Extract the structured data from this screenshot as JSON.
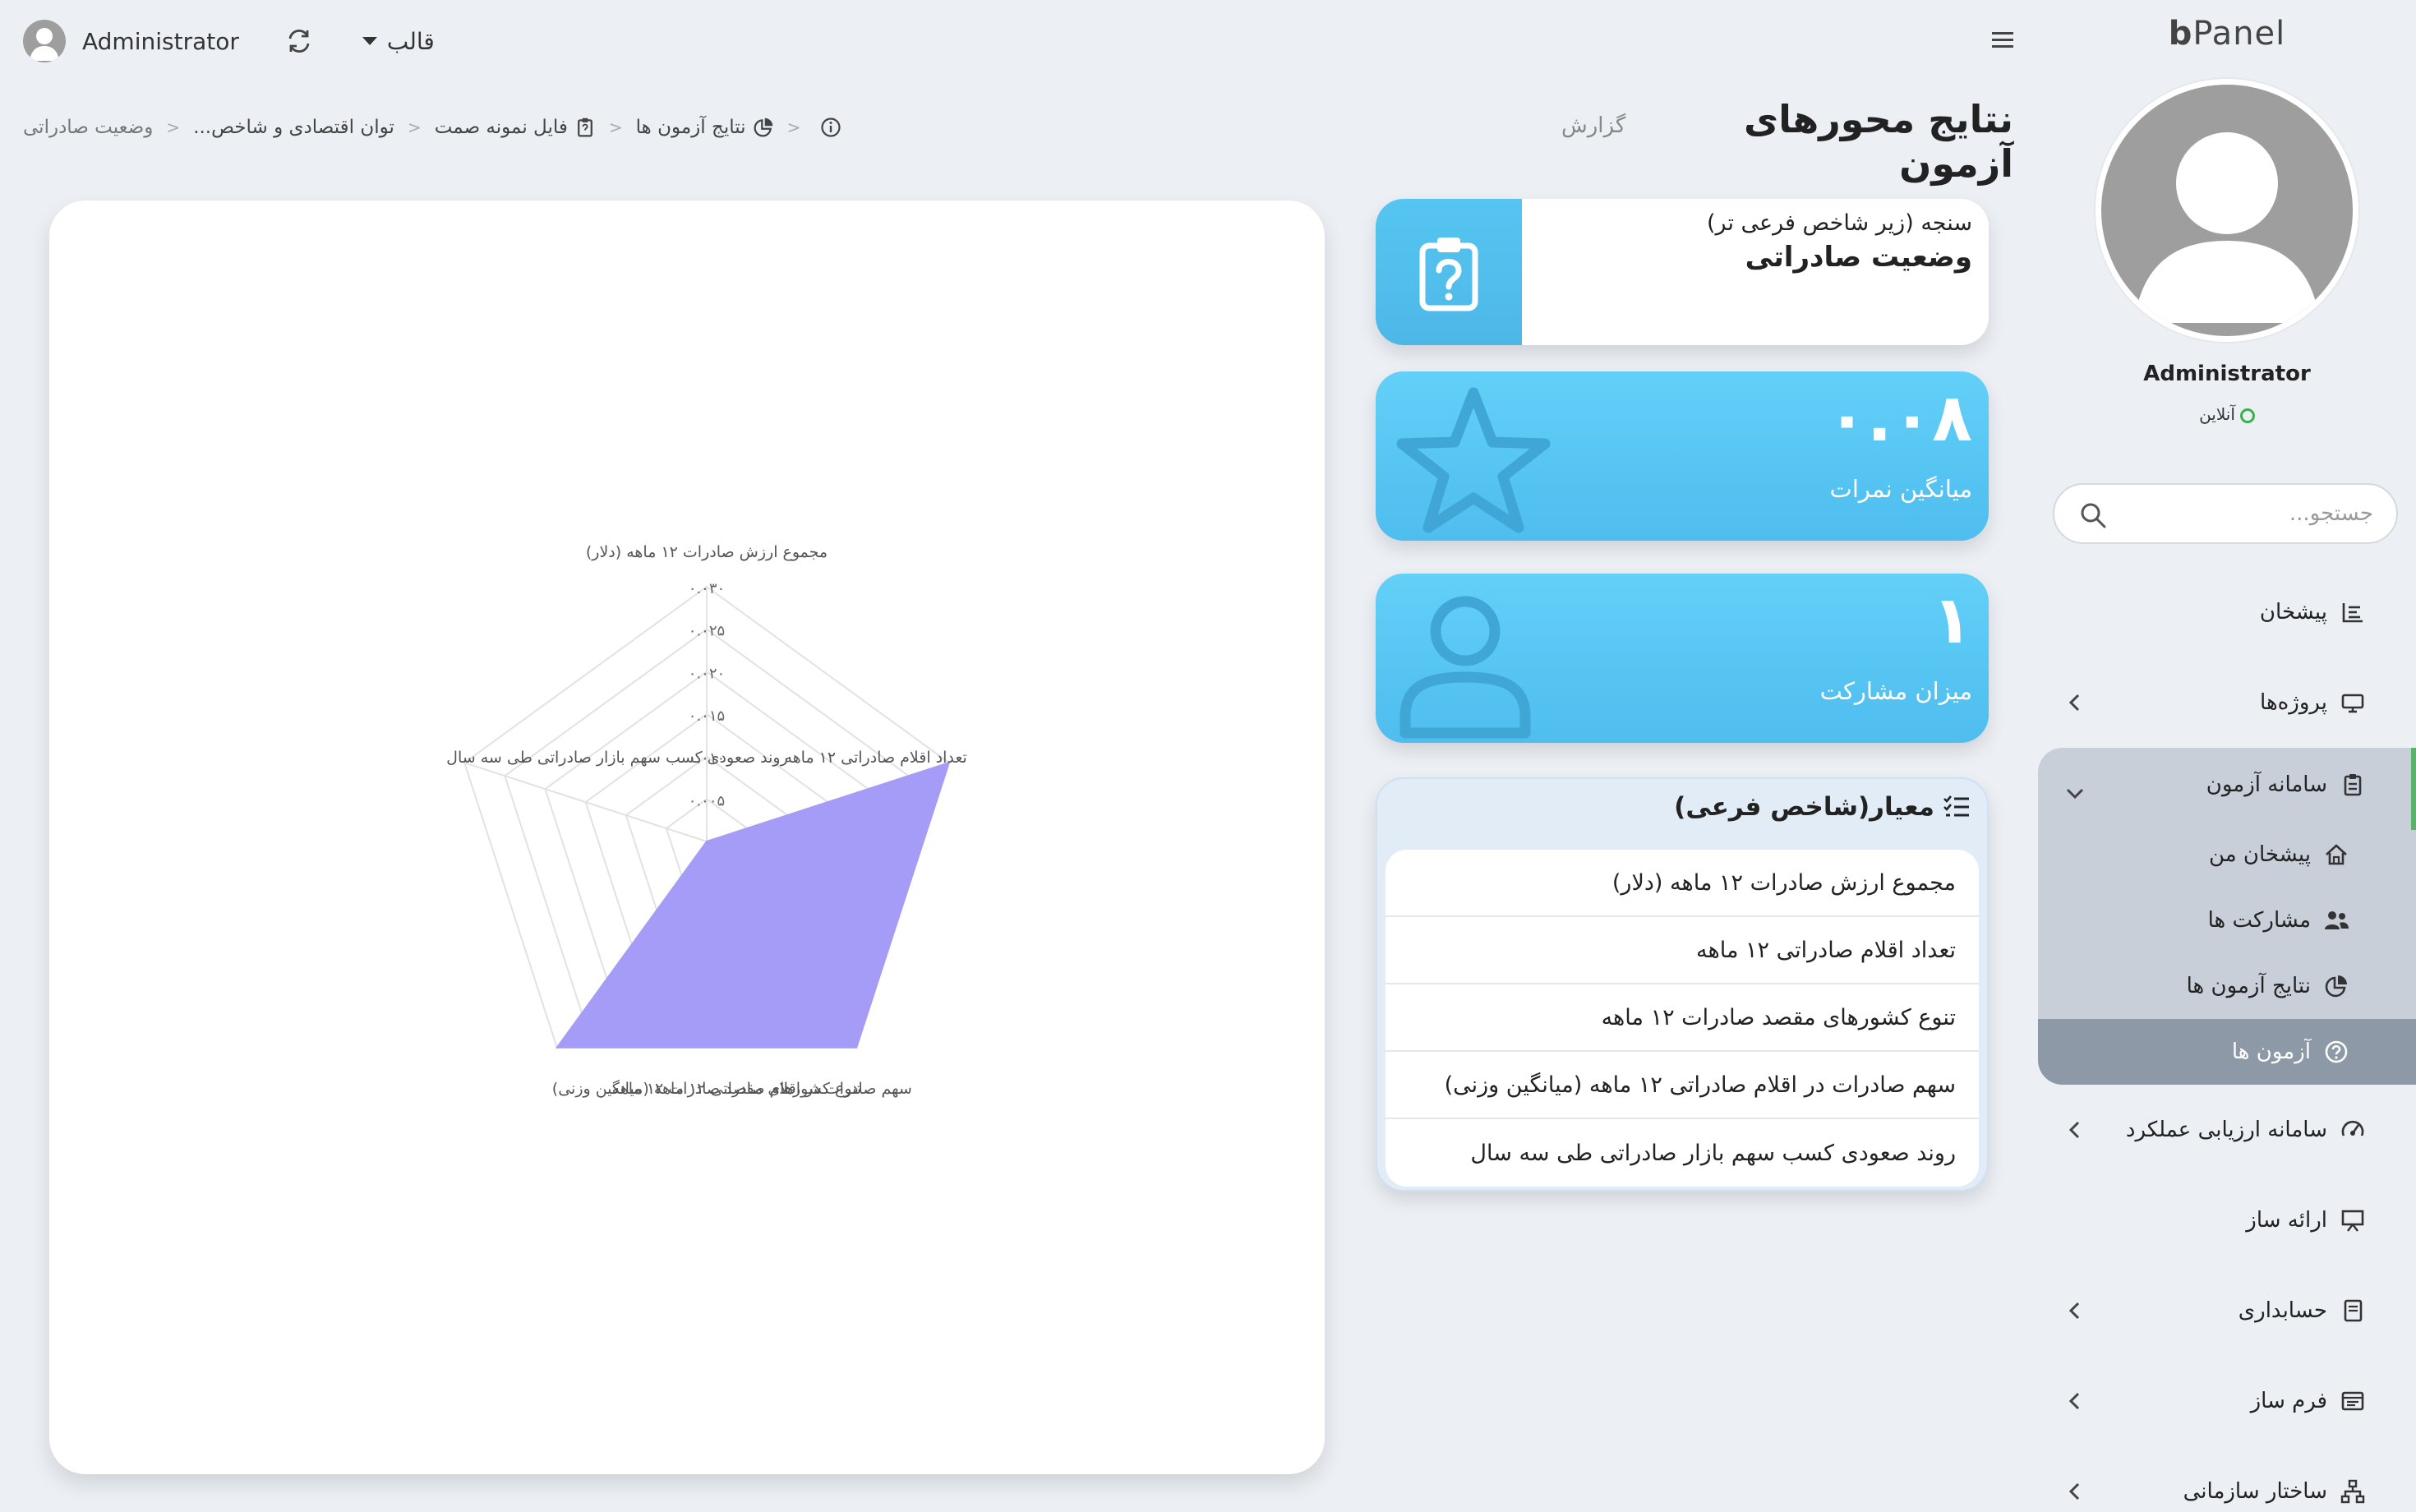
{
  "brand": {
    "prefix": "b",
    "name": "Panel"
  },
  "topbar": {
    "user_name": "Administrator",
    "theme_label": "قالب"
  },
  "sidebar": {
    "user_name": "Administrator",
    "status": "آنلاین",
    "search_placeholder": "جستجو...",
    "items": [
      {
        "label": "پیشخان",
        "icon": "dashboard-icon",
        "has_children": false
      },
      {
        "label": "پروژه‌ها",
        "icon": "projects-icon",
        "has_children": true
      },
      {
        "label": "سامانه آزمون",
        "icon": "clipboard-icon",
        "has_children": true,
        "expanded": true,
        "children": [
          {
            "label": "پیشخان من",
            "icon": "home-icon"
          },
          {
            "label": "مشارکت ها",
            "icon": "users-icon"
          },
          {
            "label": "نتایج آزمون ها",
            "icon": "pie-chart-icon"
          },
          {
            "label": "آزمون ها",
            "icon": "question-circle-icon",
            "active": true
          }
        ]
      },
      {
        "label": "سامانه ارزیابی عملکرد",
        "icon": "gauge-icon",
        "has_children": true
      },
      {
        "label": "ارائه ساز",
        "icon": "presentation-icon",
        "has_children": false
      },
      {
        "label": "حسابداری",
        "icon": "book-icon",
        "has_children": true
      },
      {
        "label": "فرم ساز",
        "icon": "form-icon",
        "has_children": true
      },
      {
        "label": "ساختار سازمانی",
        "icon": "org-chart-icon",
        "has_children": true
      }
    ]
  },
  "header": {
    "title": "نتایج محورهای آزمون",
    "subtitle": "گزارش"
  },
  "breadcrumb": [
    {
      "label": "",
      "icon": "info-icon"
    },
    {
      "label": "نتایج آزمون ها",
      "icon": "pie-chart-icon"
    },
    {
      "label": "فایل نمونه صمت",
      "icon": "clipboard-icon"
    },
    {
      "label": "توان اقتصادی و شاخص..."
    },
    {
      "label": "وضعیت صادراتی"
    }
  ],
  "boxes": {
    "measure": {
      "caption": "سنجه (زیر شاخص فرعی تر)",
      "title": "وضعیت صادراتی",
      "icon": "clipboard-question-icon"
    },
    "score": {
      "value": "۰.۰۸",
      "label": "میانگین نمرات",
      "icon": "star-icon"
    },
    "participation": {
      "value": "۱",
      "label": "میزان مشارکت",
      "icon": "user-icon"
    },
    "criteria": {
      "title": "معیار(شاخص فرعی)",
      "icon": "list-check-icon",
      "items": [
        "مجموع ارزش صادرات ۱۲ ماهه (دلار)",
        "تعداد اقلام صادراتی ۱۲ ماهه",
        "تنوع کشورهای مقصد صادرات ۱۲ ماهه",
        "سهم صادرات در اقلام صادراتی ۱۲ ماهه (میانگین وزنی)",
        "روند صعودی کسب سهم بازار صادراتی طی سه سال"
      ]
    }
  },
  "chart_data": {
    "type": "radar",
    "axes": [
      "مجموع ارزش صادرات ۱۲ ماهه (دلار)",
      "تعداد اقلام صادراتی ۱۲ ماهه",
      "تنوع کشورهای مقصد صادرات ۱۲ ماهه",
      "سهم صادرات در اقلام صادراتی ۱۲ ماهه (میانگین وزنی)",
      "روند صعودی کسب سهم بازار صادراتی طی سه سال"
    ],
    "values": [
      0.0,
      0.03,
      0.03,
      0.03,
      0.0
    ],
    "range": [
      0,
      0.03
    ],
    "ticks": [
      0.005,
      0.01,
      0.015,
      0.02,
      0.025,
      0.03
    ],
    "tick_labels": [
      "۰.۰۰۵",
      "۰.۰۱۰",
      "۰.۰۱۵",
      "۰.۰۲۰",
      "۰.۰۲۵",
      "۰.۰۳۰"
    ],
    "fill_color": "#a49cf6",
    "grid": true
  }
}
